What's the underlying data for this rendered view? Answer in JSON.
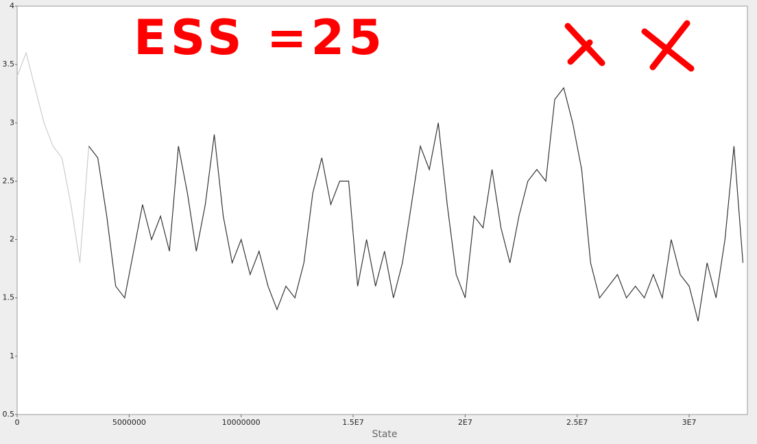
{
  "chart_data": {
    "type": "line",
    "annotation": "ESS =25",
    "x_label": "State",
    "x": [
      0,
      400000,
      800000,
      1200000,
      1600000,
      2000000,
      2400000,
      2800000,
      3200000,
      3600000,
      4000000,
      4400000,
      4800000,
      5200000,
      5600000,
      6000000,
      6400000,
      6800000,
      7200000,
      7600000,
      8000000,
      8400000,
      8800000,
      9200000,
      9600000,
      10000000,
      10400000,
      10800000,
      11200000,
      11600000,
      12000000,
      12400000,
      12800000,
      13200000,
      13600000,
      14000000,
      14400000,
      14800000,
      15200000,
      15600000,
      16000000,
      16400000,
      16800000,
      17200000,
      17600000,
      18000000,
      18400000,
      18800000,
      19200000,
      19600000,
      20000000,
      20400000,
      20800000,
      21200000,
      21600000,
      22000000,
      22400000,
      22800000,
      23200000,
      23600000,
      24000000,
      24400000,
      24800000,
      25200000,
      25600000,
      26000000,
      26400000,
      26800000,
      27200000,
      27600000,
      28000000,
      28400000,
      28800000,
      29200000,
      29600000,
      30000000,
      30400000,
      30800000,
      31200000,
      31600000,
      32000000,
      32400000
    ],
    "series": [
      {
        "color": "#cccccc",
        "values": [
          3.4,
          3.6,
          3.3,
          3.0,
          2.8,
          2.7,
          2.3,
          1.8,
          2.8,
          null,
          null,
          null,
          null,
          null,
          null,
          null,
          null,
          null,
          null,
          null,
          null,
          null,
          null,
          null,
          null,
          null,
          null,
          null,
          null,
          null,
          null,
          null,
          null,
          null,
          null,
          null,
          null,
          null,
          null,
          null,
          null,
          null,
          null,
          null,
          null,
          null,
          null,
          null,
          null,
          null,
          null,
          null,
          null,
          null,
          null,
          null,
          null,
          null,
          null,
          null,
          null,
          null,
          null,
          null,
          null,
          null,
          null,
          null,
          null,
          null,
          null,
          null,
          null,
          null,
          null,
          null,
          null,
          null,
          null,
          null,
          null,
          null
        ]
      },
      {
        "color": "#333333",
        "values": [
          null,
          null,
          null,
          null,
          null,
          null,
          null,
          null,
          2.8,
          2.7,
          2.2,
          1.6,
          1.5,
          1.9,
          2.3,
          2.0,
          2.2,
          1.9,
          2.8,
          2.4,
          1.9,
          2.3,
          2.9,
          2.2,
          1.8,
          2.0,
          1.7,
          1.9,
          1.6,
          1.4,
          1.6,
          1.5,
          1.8,
          2.4,
          2.7,
          2.3,
          2.5,
          2.5,
          1.6,
          2.0,
          1.6,
          1.9,
          1.5,
          1.8,
          2.3,
          2.8,
          2.6,
          3.0,
          2.3,
          1.7,
          1.5,
          2.2,
          2.1,
          2.6,
          2.1,
          1.8,
          2.2,
          2.5,
          2.6,
          2.5,
          3.2,
          3.3,
          3.0,
          2.6,
          1.8,
          1.5,
          1.6,
          1.7,
          1.5,
          1.6,
          1.5,
          1.7,
          1.5,
          2.0,
          1.7,
          1.6,
          1.3,
          1.8,
          1.5,
          2.0,
          2.8,
          1.8
        ]
      }
    ],
    "xlim": [
      0,
      32600000
    ],
    "xticks": [
      0,
      5000000,
      10000000,
      {
        "value": 15000000,
        "label": "1.5E7"
      },
      {
        "value": 20000000,
        "label": "2E7"
      },
      {
        "value": 25000000,
        "label": "2.5E7"
      },
      {
        "value": 30000000,
        "label": "3E7"
      }
    ],
    "ylim": [
      0.5,
      4
    ],
    "yticks": [
      0.5,
      1,
      1.5,
      2,
      2.5,
      3,
      3.5,
      4
    ]
  }
}
